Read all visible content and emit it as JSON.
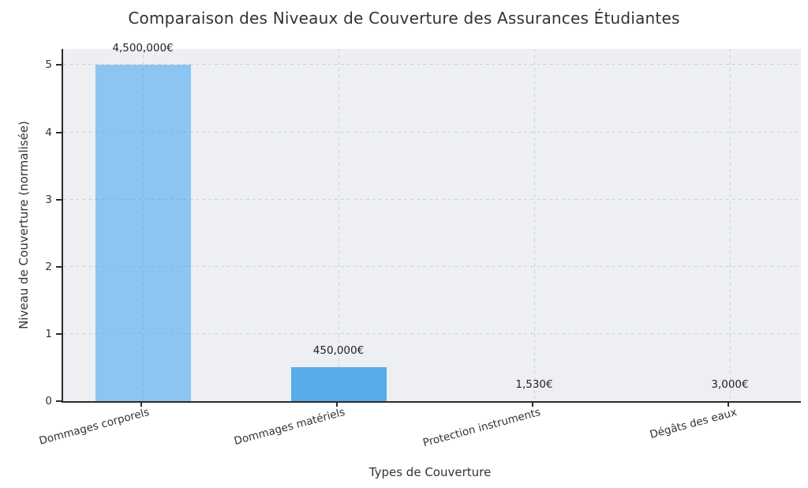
{
  "chart_data": {
    "type": "bar",
    "title": "Comparaison des Niveaux de Couverture des Assurances Étudiantes",
    "xlabel": "Types de Couverture",
    "ylabel": "Niveau de Couverture (normalisée)",
    "categories": [
      "Dommages corporels",
      "Dommages matériels",
      "Protection instruments",
      "Dégâts des eaux"
    ],
    "values": [
      5.0,
      0.5,
      0.0017,
      0.0033
    ],
    "value_labels": [
      "4,500,000€",
      "450,000€",
      "1,530€",
      "3,000€"
    ],
    "bar_colors": [
      "#8DC5F2",
      "#58ACEA",
      "#58ACEA",
      "#58ACEA"
    ],
    "yticks": [
      0,
      1,
      2,
      3,
      4,
      5
    ],
    "ylim": [
      0,
      5.24
    ],
    "grid": "dashed",
    "legend": "none",
    "colors": {
      "plot_background": "#EDEFF3",
      "grid_line": "rgba(120,130,150,0.28)",
      "spine": "#2b2b2b",
      "text": "#333333"
    }
  }
}
